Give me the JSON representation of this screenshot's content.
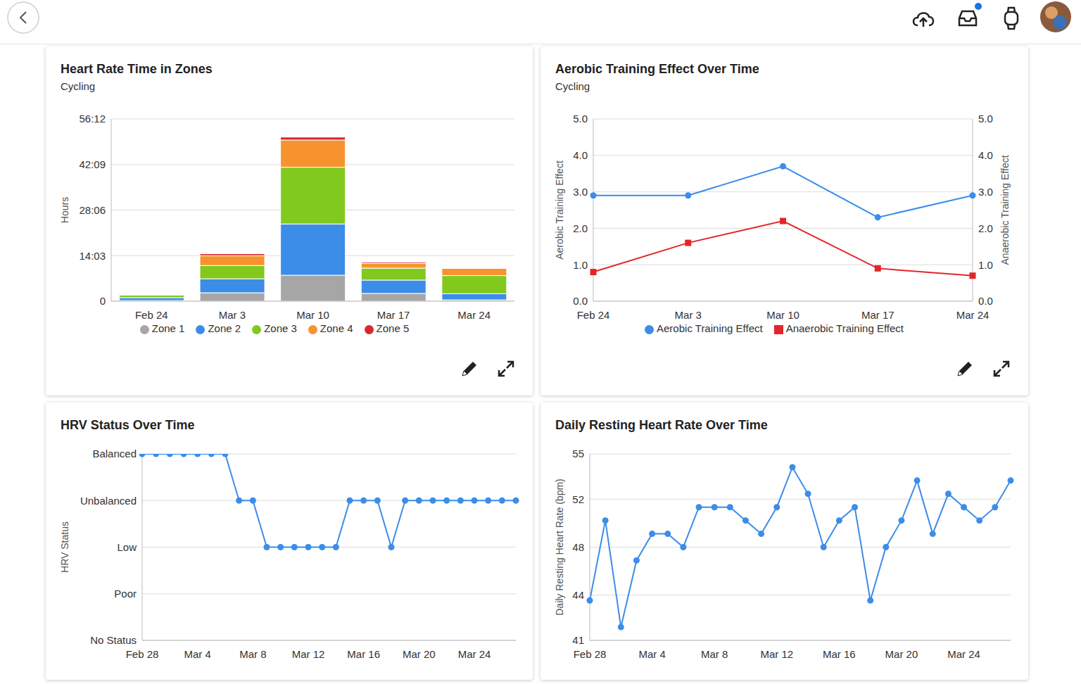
{
  "chart_data": [
    {
      "type": "bar",
      "title": "Heart Rate Time in Zones",
      "subtitle": "Cycling",
      "y_label": "Hours",
      "categories": [
        "Feb 24",
        "Mar 3",
        "Mar 10",
        "Mar 17",
        "Mar 24"
      ],
      "series": [
        {
          "name": "Zone 1",
          "color": "#a6a6a6",
          "values": [
            0.2,
            2.6,
            8.0,
            2.4,
            0.4
          ]
        },
        {
          "name": "Zone 2",
          "color": "#3b8de8",
          "values": [
            0.9,
            4.3,
            15.8,
            4.1,
            1.9
          ]
        },
        {
          "name": "Zone 3",
          "color": "#82c91e",
          "values": [
            0.8,
            4.1,
            17.5,
            3.7,
            5.6
          ]
        },
        {
          "name": "Zone 4",
          "color": "#f7932f",
          "values": [
            0.1,
            3.0,
            8.4,
            1.5,
            2.2
          ]
        },
        {
          "name": "Zone 5",
          "color": "#d7282f",
          "values": [
            0,
            0.6,
            0.9,
            0.4,
            0.1
          ]
        }
      ],
      "stacked": true,
      "ylim": [
        0,
        56.2
      ],
      "yticks": [
        0,
        {
          "value": 14.05,
          "label": "14:03"
        },
        {
          "value": 28.1,
          "label": "28:06"
        },
        {
          "value": 42.15,
          "label": "42:09"
        },
        {
          "value": 56.2,
          "label": "56:12"
        }
      ],
      "grid": true,
      "legend": "bottom"
    },
    {
      "type": "line",
      "title": "Aerobic Training Effect Over Time",
      "subtitle": "Cycling",
      "y_label": "Aerobic Training Effect",
      "y2_label": "Anaerobic Training Effect",
      "categories": [
        "Feb 24",
        "Mar 3",
        "Mar 10",
        "Mar 17",
        "Mar 24"
      ],
      "series": [
        {
          "name": "Aerobic Training Effect",
          "color": "#3b8de8",
          "marker": "circle",
          "values": [
            2.9,
            2.9,
            3.7,
            2.3,
            2.9
          ]
        },
        {
          "name": "Anaerobic Training Effect",
          "color": "#e3262b",
          "marker": "square",
          "axis": "y2",
          "values": [
            0.8,
            1.6,
            2.2,
            0.9,
            0.7
          ]
        }
      ],
      "ylim": [
        0,
        5
      ],
      "yticks": [
        {
          "value": 0,
          "label": "0.0"
        },
        {
          "value": 1,
          "label": "1.0"
        },
        {
          "value": 2,
          "label": "2.0"
        },
        {
          "value": 3,
          "label": "3.0"
        },
        {
          "value": 4,
          "label": "4.0"
        },
        {
          "value": 5,
          "label": "5.0"
        }
      ],
      "y2lim": [
        0,
        5
      ],
      "y2ticks": [
        {
          "value": 0,
          "label": "0.0"
        },
        {
          "value": 1,
          "label": "1.0"
        },
        {
          "value": 2,
          "label": "2.0"
        },
        {
          "value": 3,
          "label": "3.0"
        },
        {
          "value": 4,
          "label": "4.0"
        },
        {
          "value": 5,
          "label": "5.0"
        }
      ],
      "grid": true,
      "legend": "bottom"
    },
    {
      "type": "line",
      "title": "HRV Status Over Time",
      "y_label": "HRV Status",
      "categories": [
        "Feb 28",
        null,
        null,
        null,
        "Mar 4",
        null,
        null,
        null,
        "Mar 8",
        null,
        null,
        null,
        "Mar 12",
        null,
        null,
        null,
        "Mar 16",
        null,
        null,
        null,
        "Mar 20",
        null,
        null,
        null,
        "Mar 24",
        null,
        null,
        null
      ],
      "values": [
        4,
        4,
        4,
        4,
        4,
        4,
        4,
        3,
        3,
        2,
        2,
        2,
        2,
        2,
        2,
        3,
        3,
        3,
        2,
        3,
        3,
        3,
        3,
        3,
        3,
        3,
        3,
        3
      ],
      "color": "#3b8de8",
      "marker": "circle",
      "ylim": [
        0,
        4
      ],
      "yticks": [
        {
          "value": 0,
          "label": "No Status"
        },
        {
          "value": 1,
          "label": "Poor"
        },
        {
          "value": 2,
          "label": "Low"
        },
        {
          "value": 3,
          "label": "Unbalanced"
        },
        {
          "value": 4,
          "label": "Balanced"
        }
      ],
      "grid": true
    },
    {
      "type": "line",
      "title": "Daily Resting Heart Rate Over Time",
      "y_label": "Daily Resting Heart Rate (bpm)",
      "categories": [
        "Feb 28",
        null,
        null,
        null,
        "Mar 4",
        null,
        null,
        null,
        "Mar 8",
        null,
        null,
        null,
        "Mar 12",
        null,
        null,
        null,
        "Mar 16",
        null,
        null,
        null,
        "Mar 20",
        null,
        null,
        null,
        "Mar 24",
        null,
        null,
        null
      ],
      "values": [
        44,
        50,
        42,
        47,
        49,
        49,
        48,
        51,
        51,
        51,
        50,
        49,
        51,
        54,
        52,
        48,
        50,
        51,
        44,
        48,
        50,
        53,
        49,
        52,
        51,
        50,
        51,
        53
      ],
      "color": "#3b8de8",
      "marker": "circle",
      "ylim": [
        41,
        55
      ],
      "yticks": [
        41,
        {
          "value": 44.4,
          "label": "44"
        },
        48,
        {
          "value": 51.6,
          "label": "52"
        },
        55
      ],
      "grid": true
    }
  ]
}
